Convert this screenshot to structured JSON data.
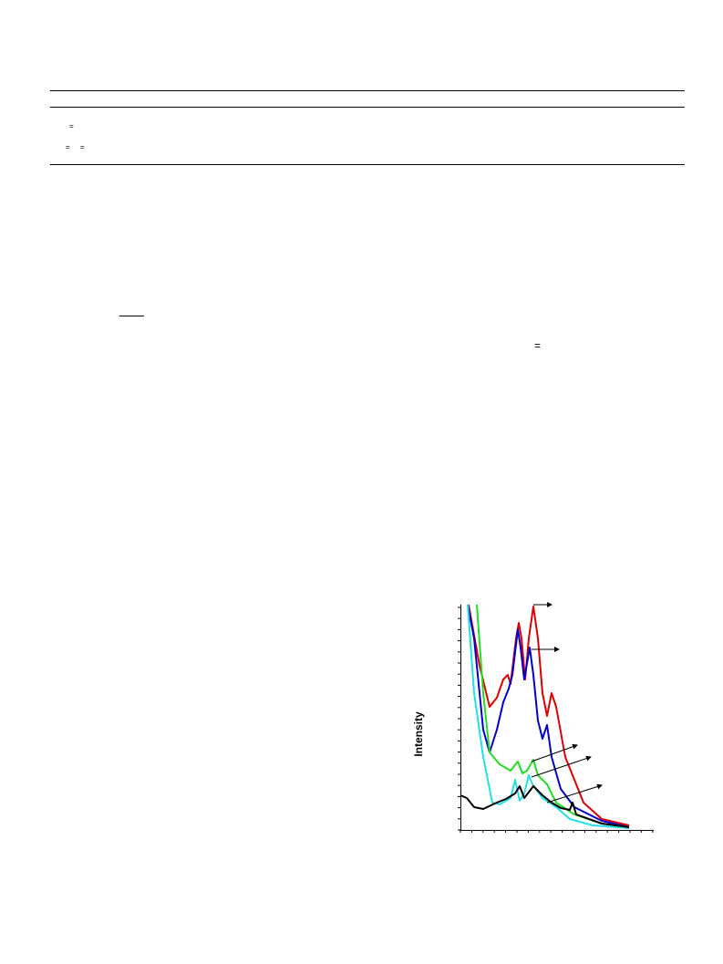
{
  "table": {
    "rows": [
      [
        "="
      ],
      [
        "=",
        "="
      ]
    ]
  },
  "body": {
    "equation_sign": "="
  },
  "figure": {
    "y_label": "Intensity"
  }
}
